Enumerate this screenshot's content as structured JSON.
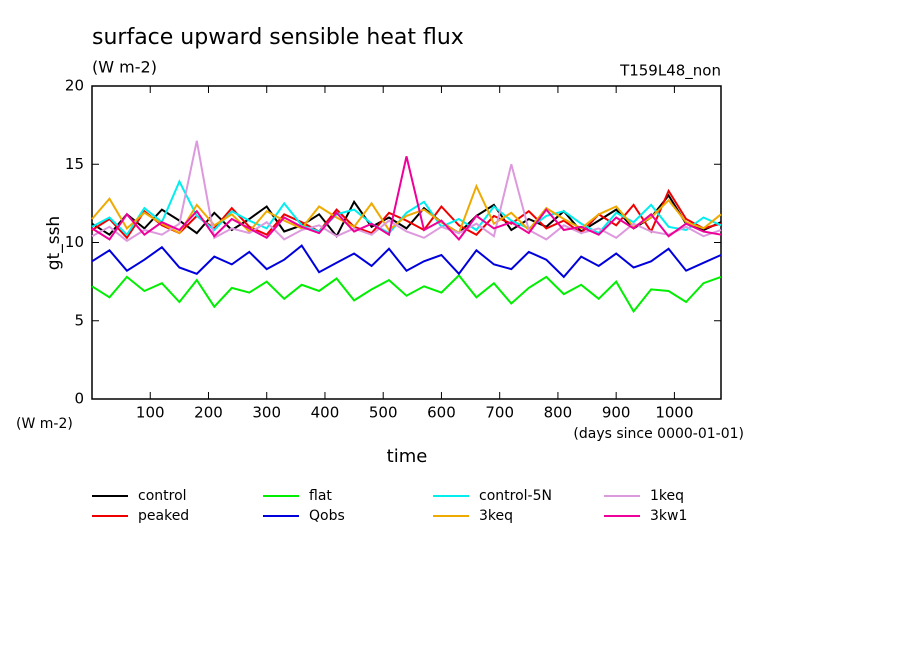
{
  "chart_data": {
    "type": "line",
    "title": "surface upward sensible heat flux",
    "subtitle": "(W m-2)",
    "run_label": "T159L48_non",
    "y_label": "gt_ssh",
    "y_unit": "(W m-2)",
    "x_label": "time",
    "x_unit": "(days since 0000-01-01)",
    "x": [
      0,
      30,
      60,
      90,
      120,
      150,
      180,
      210,
      240,
      270,
      300,
      330,
      360,
      390,
      420,
      450,
      480,
      510,
      540,
      570,
      600,
      630,
      660,
      690,
      720,
      750,
      780,
      810,
      840,
      870,
      900,
      930,
      960,
      990,
      1020,
      1050,
      1080
    ],
    "xlim": [
      0,
      1080
    ],
    "xticks": [
      100,
      200,
      300,
      400,
      500,
      600,
      700,
      800,
      900,
      1000
    ],
    "ylim": [
      0,
      20
    ],
    "yticks": [
      0,
      5,
      10,
      15,
      20
    ],
    "series": [
      {
        "name": "control",
        "color": "#000000",
        "values": [
          11.2,
          10.5,
          11.8,
          10.9,
          12.1,
          11.4,
          10.6,
          11.9,
          10.8,
          11.5,
          12.3,
          10.7,
          11.1,
          11.8,
          10.4,
          12.6,
          11.0,
          11.6,
          10.9,
          12.2,
          11.3,
          10.6,
          11.7,
          12.4,
          10.8,
          11.5,
          11.0,
          12.0,
          10.7,
          11.4,
          12.1,
          10.9,
          11.6,
          13.0,
          11.2,
          10.8,
          11.3
        ]
      },
      {
        "name": "peaked",
        "color": "#ee0000",
        "values": [
          10.8,
          11.5,
          10.3,
          12.0,
          11.1,
          10.6,
          11.7,
          10.9,
          12.2,
          11.0,
          10.5,
          11.8,
          11.3,
          10.7,
          12.1,
          11.0,
          10.6,
          11.9,
          11.4,
          10.8,
          12.3,
          11.1,
          10.5,
          11.7,
          11.2,
          12.0,
          10.9,
          11.4,
          10.6,
          11.8,
          11.1,
          12.4,
          10.7,
          13.3,
          11.5,
          10.9,
          11.2
        ]
      },
      {
        "name": "flat",
        "color": "#00ee00",
        "values": [
          7.2,
          6.5,
          7.8,
          6.9,
          7.4,
          6.2,
          7.6,
          5.9,
          7.1,
          6.8,
          7.5,
          6.4,
          7.3,
          6.9,
          7.7,
          6.3,
          7.0,
          7.6,
          6.6,
          7.2,
          6.8,
          7.9,
          6.5,
          7.4,
          6.1,
          7.1,
          7.8,
          6.7,
          7.3,
          6.4,
          7.5,
          5.6,
          7.0,
          6.9,
          6.2,
          7.4,
          7.8
        ]
      },
      {
        "name": "Qobs",
        "color": "#0000dd",
        "values": [
          8.8,
          9.5,
          8.2,
          8.9,
          9.7,
          8.4,
          8.0,
          9.1,
          8.6,
          9.4,
          8.3,
          8.9,
          9.8,
          8.1,
          8.7,
          9.3,
          8.5,
          9.6,
          8.2,
          8.8,
          9.2,
          8.0,
          9.5,
          8.6,
          8.3,
          9.4,
          8.9,
          7.8,
          9.1,
          8.5,
          9.3,
          8.4,
          8.8,
          9.6,
          8.2,
          8.7,
          9.2
        ]
      },
      {
        "name": "control-5N",
        "color": "#00eeee",
        "values": [
          11.0,
          11.6,
          10.5,
          12.2,
          11.3,
          13.9,
          11.7,
          10.8,
          12.0,
          11.4,
          10.9,
          12.5,
          11.1,
          10.7,
          11.8,
          12.1,
          11.2,
          10.6,
          11.9,
          12.6,
          11.0,
          11.5,
          10.8,
          12.3,
          11.4,
          10.9,
          11.7,
          12.0,
          11.2,
          10.6,
          11.9,
          11.3,
          12.4,
          11.0,
          10.8,
          11.6,
          11.1
        ]
      },
      {
        "name": "3keq",
        "color": "#eeaa00",
        "values": [
          11.5,
          12.8,
          10.9,
          11.9,
          11.2,
          10.6,
          12.4,
          11.1,
          11.8,
          10.7,
          12.0,
          11.4,
          10.9,
          12.3,
          11.6,
          11.0,
          12.5,
          10.8,
          11.7,
          12.1,
          11.3,
          10.6,
          13.6,
          11.2,
          11.9,
          10.8,
          12.2,
          11.5,
          10.9,
          11.8,
          12.3,
          11.0,
          11.6,
          12.7,
          11.3,
          10.9,
          11.8
        ]
      },
      {
        "name": "1keq",
        "color": "#dd99dd",
        "values": [
          10.4,
          11.0,
          10.1,
          10.8,
          10.5,
          11.2,
          16.5,
          10.3,
          10.9,
          10.6,
          11.3,
          10.2,
          10.8,
          11.1,
          10.4,
          10.9,
          10.5,
          11.4,
          10.7,
          10.3,
          11.0,
          10.6,
          11.2,
          10.4,
          15.0,
          10.8,
          10.2,
          11.1,
          10.6,
          10.9,
          10.3,
          11.2,
          10.7,
          10.5,
          11.0,
          10.4,
          10.8
        ]
      },
      {
        "name": "3kw1",
        "color": "#ee0099",
        "values": [
          10.9,
          10.2,
          11.8,
          10.5,
          11.3,
          10.8,
          12.0,
          10.4,
          11.5,
          10.9,
          10.3,
          11.6,
          11.0,
          10.6,
          11.9,
          10.7,
          11.2,
          10.5,
          15.5,
          10.8,
          11.4,
          10.2,
          11.7,
          10.9,
          11.3,
          10.6,
          12.1,
          10.8,
          11.0,
          10.5,
          11.6,
          10.9,
          11.8,
          10.4,
          11.2,
          10.7,
          10.5
        ]
      }
    ]
  }
}
